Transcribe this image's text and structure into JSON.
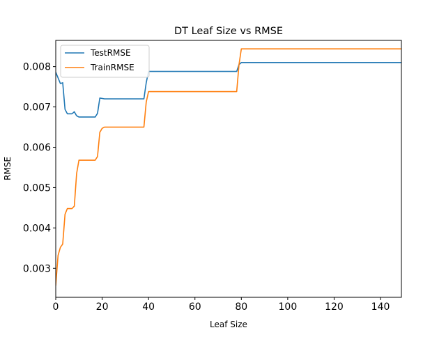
{
  "chart_data": {
    "type": "line",
    "title": "DT Leaf Size vs RMSE",
    "xlabel": "Leaf Size",
    "ylabel": "RMSE",
    "xlim": [
      0,
      149
    ],
    "ylim": [
      0.00228,
      0.00865
    ],
    "xticks": [
      0,
      20,
      40,
      60,
      80,
      100,
      120,
      140
    ],
    "yticks": [
      0.003,
      0.004,
      0.005,
      0.006,
      0.007,
      0.008
    ],
    "xtick_labels": [
      "0",
      "20",
      "40",
      "60",
      "80",
      "100",
      "120",
      "140"
    ],
    "ytick_labels": [
      "0.003",
      "0.004",
      "0.005",
      "0.006",
      "0.007",
      "0.008"
    ],
    "grid": false,
    "legend_position": "top-left",
    "series": [
      {
        "name": "TestRMSE",
        "color": "#1f77b4",
        "points": [
          [
            0,
            0.00786
          ],
          [
            1,
            0.00772
          ],
          [
            2,
            0.00758
          ],
          [
            3,
            0.0076
          ],
          [
            4,
            0.00694
          ],
          [
            5,
            0.00683
          ],
          [
            7,
            0.00683
          ],
          [
            8,
            0.00688
          ],
          [
            9,
            0.00678
          ],
          [
            10,
            0.00675
          ],
          [
            17,
            0.00675
          ],
          [
            18,
            0.00684
          ],
          [
            19,
            0.00722
          ],
          [
            21,
            0.0072
          ],
          [
            38,
            0.0072
          ],
          [
            39,
            0.0076
          ],
          [
            40,
            0.00788
          ],
          [
            78,
            0.00788
          ],
          [
            79,
            0.00805
          ],
          [
            80,
            0.0081
          ],
          [
            149,
            0.0081
          ]
        ]
      },
      {
        "name": "TrainRMSE",
        "color": "#ff7f0e",
        "points": [
          [
            0,
            0.00258
          ],
          [
            1,
            0.00332
          ],
          [
            2,
            0.00352
          ],
          [
            3,
            0.0036
          ],
          [
            4,
            0.00434
          ],
          [
            5,
            0.00448
          ],
          [
            7,
            0.00448
          ],
          [
            8,
            0.00454
          ],
          [
            9,
            0.00535
          ],
          [
            10,
            0.00568
          ],
          [
            17,
            0.00568
          ],
          [
            18,
            0.00577
          ],
          [
            19,
            0.00637
          ],
          [
            20,
            0.00647
          ],
          [
            21,
            0.0065
          ],
          [
            38,
            0.0065
          ],
          [
            39,
            0.00712
          ],
          [
            40,
            0.00738
          ],
          [
            78,
            0.00738
          ],
          [
            79,
            0.00805
          ],
          [
            80,
            0.00844
          ],
          [
            149,
            0.00844
          ]
        ]
      }
    ]
  }
}
